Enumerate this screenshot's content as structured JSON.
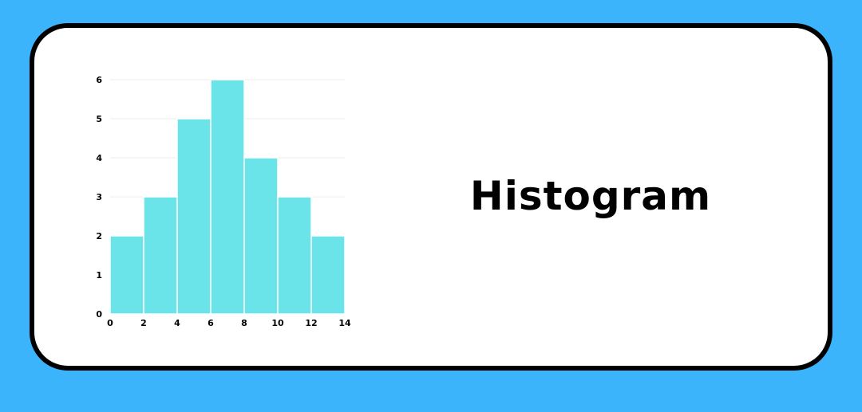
{
  "title": "Histogram",
  "colors": {
    "background": "#3bb4fb",
    "card": "#ffffff",
    "card_border": "#000000",
    "bar": "#6be4e9",
    "gridline": "#ececec"
  },
  "chart_data": {
    "type": "bar",
    "subtype": "histogram",
    "bins": [
      [
        0,
        2
      ],
      [
        2,
        4
      ],
      [
        4,
        6
      ],
      [
        6,
        8
      ],
      [
        8,
        10
      ],
      [
        10,
        12
      ],
      [
        12,
        14
      ]
    ],
    "values": [
      2,
      3,
      5,
      6,
      4,
      3,
      2
    ],
    "x_ticks": [
      0,
      2,
      4,
      6,
      8,
      10,
      12,
      14
    ],
    "y_ticks": [
      0,
      1,
      2,
      3,
      4,
      5,
      6
    ],
    "xlim": [
      0,
      14
    ],
    "ylim": [
      0,
      6
    ],
    "xlabel": "",
    "ylabel": "",
    "grid": "horizontal",
    "legend": "none"
  }
}
